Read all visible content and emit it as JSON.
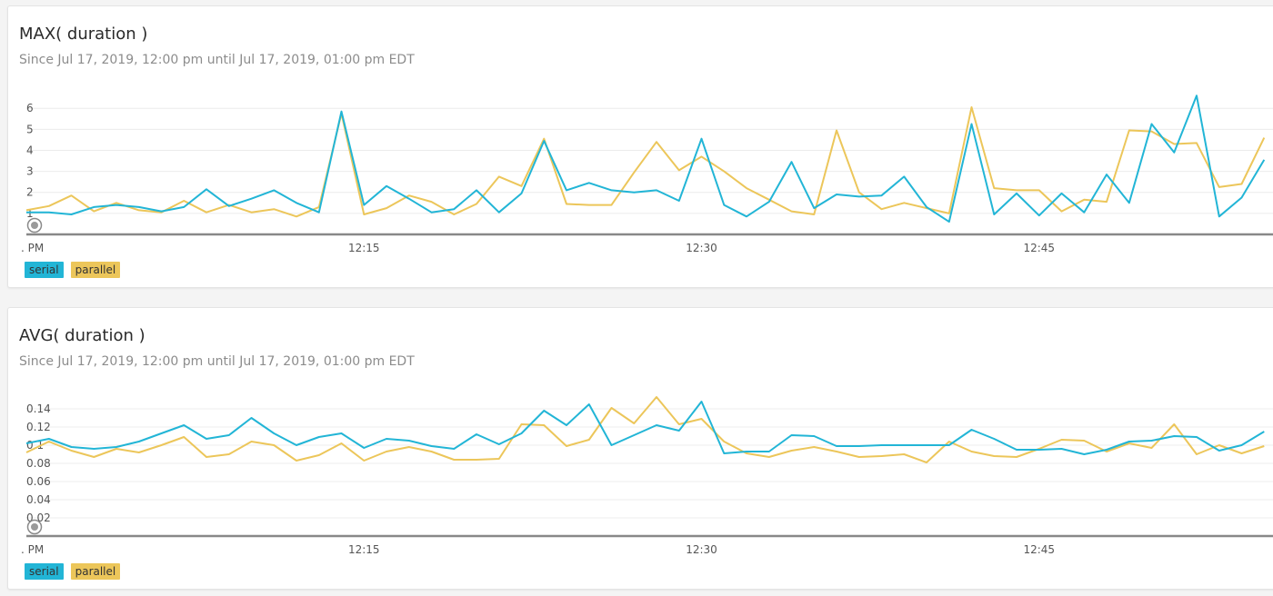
{
  "colors": {
    "serial": "#22b5d6",
    "parallel": "#ecc65a",
    "axis": "#888888",
    "grid": "#ececec"
  },
  "panels": [
    {
      "title": "MAX( duration )",
      "subtitle": "Since Jul 17, 2019, 12:00 pm until Jul 17, 2019, 01:00 pm EDT",
      "legend": [
        "serial",
        "parallel"
      ],
      "x_tick_labels": [
        ". PM",
        "12:15",
        "12:30",
        "12:45"
      ],
      "y_tick_labels": [
        "1",
        "2",
        "3",
        "4",
        "5",
        "6"
      ]
    },
    {
      "title": "AVG( duration )",
      "subtitle": "Since Jul 17, 2019, 12:00 pm until Jul 17, 2019, 01:00 pm EDT",
      "legend": [
        "serial",
        "parallel"
      ],
      "x_tick_labels": [
        ". PM",
        "12:15",
        "12:30",
        "12:45"
      ],
      "y_tick_labels": [
        "0.02",
        "0.04",
        "0.06",
        "0.08",
        "0.1",
        "0.12",
        "0.14"
      ]
    }
  ],
  "chart_data": [
    {
      "type": "line",
      "title": "MAX( duration )",
      "x_start": "12:00",
      "x_step_minutes": 1,
      "x_ticks": [
        "12:15",
        "12:30",
        "12:45"
      ],
      "ylim": [
        0,
        6.7
      ],
      "yticks": [
        1,
        2,
        3,
        4,
        5,
        6
      ],
      "grid": true,
      "legend_position": "bottom-left",
      "series": [
        {
          "name": "serial",
          "values": [
            1.05,
            1.05,
            0.95,
            1.3,
            1.4,
            1.3,
            1.1,
            1.3,
            2.15,
            1.35,
            1.7,
            2.1,
            1.5,
            1.05,
            5.85,
            1.4,
            2.3,
            1.7,
            1.05,
            1.2,
            2.1,
            1.05,
            1.95,
            4.45,
            2.1,
            2.45,
            2.1,
            2.0,
            2.1,
            1.6,
            4.55,
            1.4,
            0.85,
            1.55,
            3.45,
            1.25,
            1.9,
            1.8,
            1.85,
            2.75,
            1.3,
            0.6,
            5.25,
            0.95,
            1.95,
            0.9,
            1.95,
            1.05,
            2.85,
            1.5,
            5.25,
            3.9,
            6.6,
            0.85,
            1.75,
            3.55
          ]
        },
        {
          "name": "parallel",
          "values": [
            1.15,
            1.35,
            1.85,
            1.1,
            1.5,
            1.15,
            1.05,
            1.6,
            1.05,
            1.4,
            1.05,
            1.2,
            0.85,
            1.3,
            5.75,
            0.95,
            1.25,
            1.85,
            1.55,
            0.95,
            1.45,
            2.75,
            2.3,
            4.55,
            1.45,
            1.4,
            1.4,
            2.95,
            4.4,
            3.05,
            3.7,
            3.0,
            2.2,
            1.65,
            1.1,
            0.95,
            4.95,
            2.0,
            1.2,
            1.5,
            1.25,
            1.0,
            6.05,
            2.2,
            2.1,
            2.1,
            1.1,
            1.65,
            1.55,
            4.95,
            4.9,
            4.3,
            4.35,
            2.25,
            2.4,
            4.6
          ]
        }
      ]
    },
    {
      "type": "line",
      "title": "AVG( duration )",
      "x_start": "12:00",
      "x_step_minutes": 1,
      "x_ticks": [
        "12:15",
        "12:30",
        "12:45"
      ],
      "ylim": [
        0,
        0.155
      ],
      "yticks": [
        0.02,
        0.04,
        0.06,
        0.08,
        0.1,
        0.12,
        0.14
      ],
      "grid": true,
      "legend_position": "bottom-left",
      "series": [
        {
          "name": "serial",
          "values": [
            0.102,
            0.107,
            0.098,
            0.096,
            0.098,
            0.104,
            0.113,
            0.122,
            0.107,
            0.111,
            0.13,
            0.113,
            0.1,
            0.109,
            0.113,
            0.097,
            0.107,
            0.105,
            0.099,
            0.096,
            0.112,
            0.101,
            0.113,
            0.138,
            0.122,
            0.145,
            0.1,
            0.111,
            0.122,
            0.116,
            0.148,
            0.091,
            0.093,
            0.093,
            0.111,
            0.11,
            0.099,
            0.099,
            0.1,
            0.1,
            0.1,
            0.1,
            0.117,
            0.107,
            0.095,
            0.095,
            0.096,
            0.09,
            0.095,
            0.104,
            0.105,
            0.11,
            0.109,
            0.094,
            0.1,
            0.115
          ]
        },
        {
          "name": "parallel",
          "values": [
            0.092,
            0.104,
            0.094,
            0.087,
            0.096,
            0.092,
            0.1,
            0.109,
            0.087,
            0.09,
            0.104,
            0.1,
            0.083,
            0.089,
            0.102,
            0.083,
            0.093,
            0.098,
            0.093,
            0.084,
            0.084,
            0.085,
            0.123,
            0.122,
            0.099,
            0.106,
            0.141,
            0.124,
            0.153,
            0.123,
            0.129,
            0.104,
            0.091,
            0.087,
            0.094,
            0.098,
            0.093,
            0.087,
            0.088,
            0.09,
            0.081,
            0.104,
            0.093,
            0.088,
            0.087,
            0.096,
            0.106,
            0.105,
            0.093,
            0.102,
            0.097,
            0.123,
            0.09,
            0.1,
            0.091,
            0.099
          ]
        }
      ]
    }
  ]
}
